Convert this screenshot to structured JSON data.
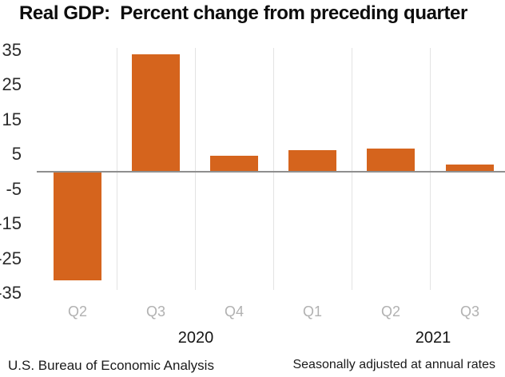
{
  "title": "Real GDP:  Percent change from preceding quarter",
  "chart_data": {
    "type": "bar",
    "categories": [
      "Q2",
      "Q3",
      "Q4",
      "Q1",
      "Q2",
      "Q3"
    ],
    "values": [
      -31.2,
      33.8,
      4.5,
      6.3,
      6.7,
      2.0
    ],
    "year_groups": [
      {
        "label": "2020",
        "quarters": [
          "Q2",
          "Q3",
          "Q4"
        ]
      },
      {
        "label": "2021",
        "quarters": [
          "Q1",
          "Q2",
          "Q3"
        ]
      }
    ],
    "y_ticks": [
      35,
      25,
      15,
      5,
      -5,
      -15,
      -25,
      -35
    ],
    "ylim": [
      -35.5,
      36
    ],
    "xlabel": "",
    "ylabel": "",
    "legend": "none",
    "grid": "vertical-between-categories-only",
    "title": "Real GDP:  Percent change from preceding quarter"
  },
  "colors": {
    "bar": "#d5641d",
    "zero_line": "#8f8f8f",
    "gridline": "#e3e3e3",
    "tick_label": "#2b2b2b",
    "quarter_label": "#b1b1b1",
    "year_label": "#151515",
    "title_text": "#0d0d0d",
    "footer_text": "#1a1a1a",
    "background": "#ffffff"
  },
  "footer": {
    "left": "U.S. Bureau of Economic Analysis",
    "right": "Seasonally adjusted at annual rates"
  }
}
